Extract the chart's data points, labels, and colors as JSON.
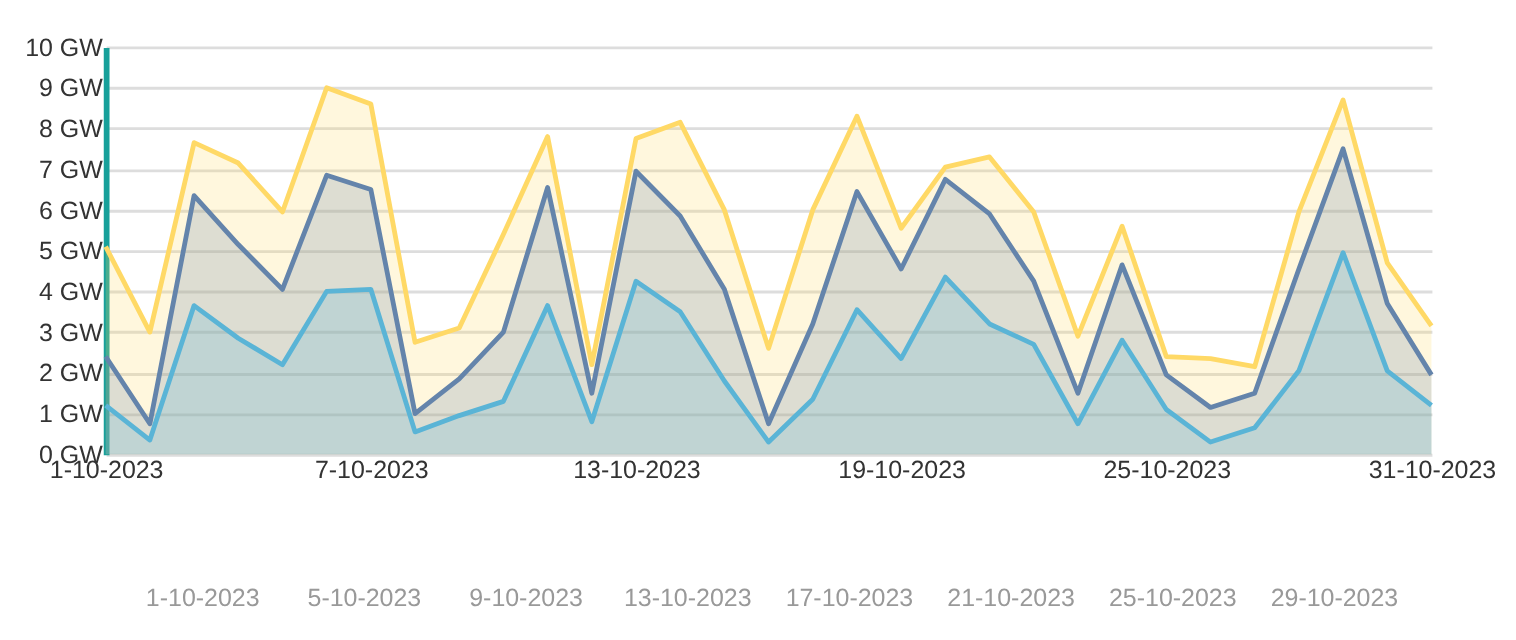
{
  "chart_data": {
    "type": "area",
    "x": [
      "2023-10-01",
      "2023-10-02",
      "2023-10-03",
      "2023-10-04",
      "2023-10-05",
      "2023-10-06",
      "2023-10-07",
      "2023-10-08",
      "2023-10-09",
      "2023-10-10",
      "2023-10-11",
      "2023-10-12",
      "2023-10-13",
      "2023-10-14",
      "2023-10-15",
      "2023-10-16",
      "2023-10-17",
      "2023-10-18",
      "2023-10-19",
      "2023-10-20",
      "2023-10-21",
      "2023-10-22",
      "2023-10-23",
      "2023-10-24",
      "2023-10-25",
      "2023-10-26",
      "2023-10-27",
      "2023-10-28",
      "2023-10-29",
      "2023-10-30",
      "2023-10-31"
    ],
    "series": [
      {
        "color": "#5ab4d6",
        "values": [
          1.2,
          0.35,
          3.65,
          2.85,
          2.2,
          4.0,
          4.05,
          0.55,
          0.95,
          1.3,
          3.65,
          0.8,
          4.25,
          3.5,
          1.8,
          0.3,
          1.35,
          3.55,
          2.35,
          4.35,
          3.2,
          2.7,
          0.75,
          2.8,
          1.1,
          0.3,
          0.65,
          2.05,
          4.95,
          2.05,
          1.2
        ]
      },
      {
        "color": "#6484ab",
        "values": [
          2.4,
          0.75,
          6.35,
          5.15,
          4.05,
          6.85,
          6.5,
          1.0,
          1.85,
          3.0,
          6.55,
          1.5,
          6.95,
          5.85,
          4.05,
          0.75,
          3.2,
          6.45,
          4.55,
          6.75,
          5.9,
          4.25,
          1.5,
          4.65,
          1.95,
          1.15,
          1.5,
          4.55,
          7.5,
          3.7,
          1.95
        ]
      },
      {
        "color": "#ffd966",
        "values": [
          5.1,
          3.0,
          7.65,
          7.15,
          5.95,
          9.0,
          8.6,
          2.75,
          3.1,
          5.4,
          7.8,
          2.2,
          7.75,
          8.15,
          6.0,
          2.6,
          6.0,
          8.3,
          5.55,
          7.05,
          7.3,
          5.95,
          2.9,
          5.6,
          2.4,
          2.35,
          2.15,
          5.95,
          8.7,
          4.7,
          3.15
        ]
      }
    ],
    "xlim": [
      "2023-10-01",
      "2023-10-31"
    ],
    "xticks": [
      {
        "value": "2023-10-01",
        "label": "1-10-2023"
      },
      {
        "value": "2023-10-07",
        "label": "7-10-2023"
      },
      {
        "value": "2023-10-13",
        "label": "13-10-2023"
      },
      {
        "value": "2023-10-19",
        "label": "19-10-2023"
      },
      {
        "value": "2023-10-25",
        "label": "25-10-2023"
      },
      {
        "value": "2023-10-31",
        "label": "31-10-2023"
      }
    ],
    "ylim": [
      0,
      10
    ],
    "yticks": [
      {
        "value": 0,
        "label": "0 GW"
      },
      {
        "value": 1,
        "label": "1 GW"
      },
      {
        "value": 2,
        "label": "2 GW"
      },
      {
        "value": 3,
        "label": "3 GW"
      },
      {
        "value": 4,
        "label": "4 GW"
      },
      {
        "value": 5,
        "label": "5 GW"
      },
      {
        "value": 6,
        "label": "6 GW"
      },
      {
        "value": 7,
        "label": "7 GW"
      },
      {
        "value": 8,
        "label": "8 GW"
      },
      {
        "value": 9,
        "label": "9 GW"
      },
      {
        "value": 10,
        "label": "10 GW"
      }
    ],
    "grid": "y",
    "marker": "none",
    "line_style": "solid",
    "annotations": [
      "1-10-2023",
      "5-10-2023",
      "9-10-2023",
      "13-10-2023",
      "17-10-2023",
      "21-10-2023",
      "25-10-2023",
      "29-10-2023"
    ]
  }
}
